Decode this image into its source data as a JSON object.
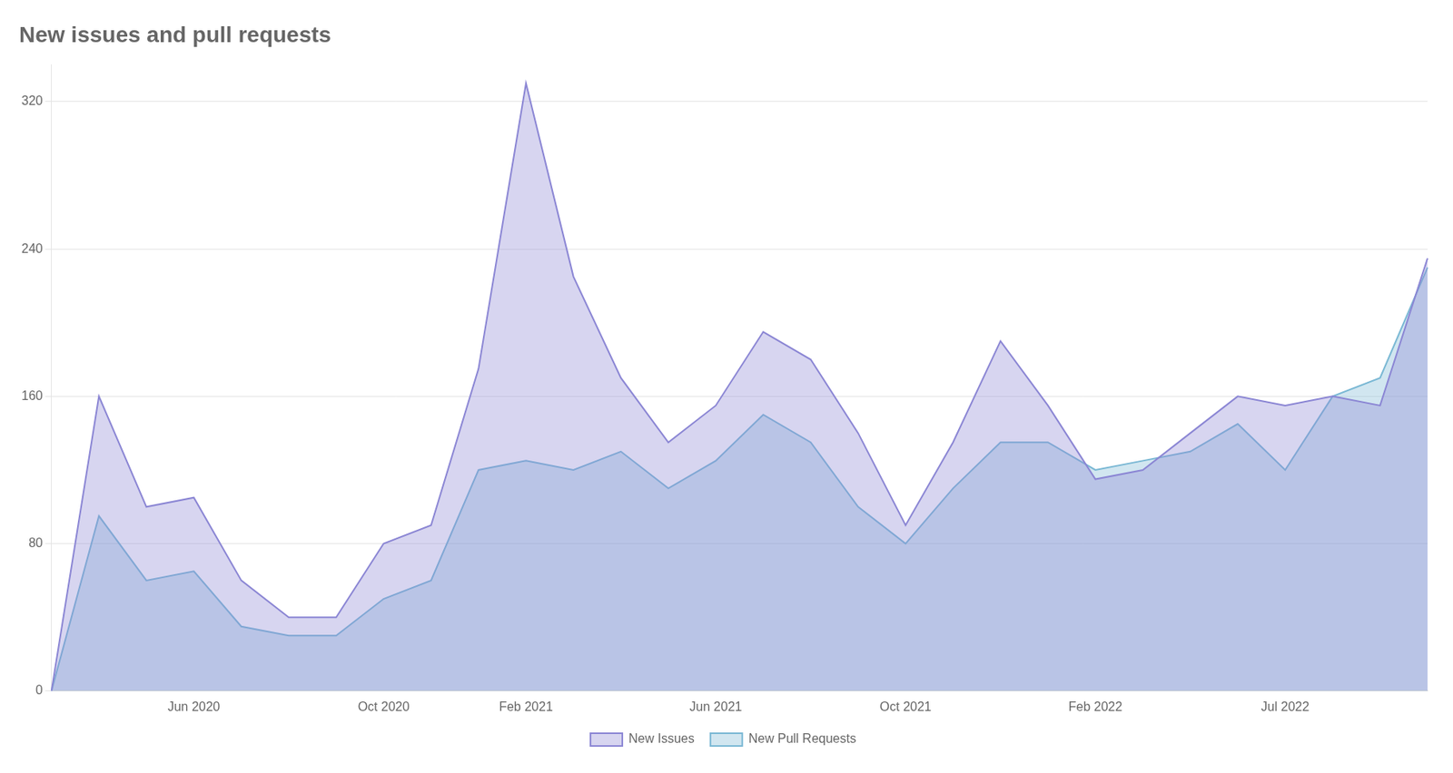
{
  "chart_data": {
    "type": "area",
    "title": "New issues and pull requests",
    "categories": [
      null,
      null,
      null,
      "Jun 2020",
      null,
      null,
      null,
      "Oct 2020",
      null,
      null,
      "Feb 2021",
      null,
      null,
      null,
      "Jun 2021",
      null,
      null,
      null,
      "Oct 2021",
      null,
      null,
      null,
      "Feb 2022",
      null,
      null,
      null,
      "Jul 2022",
      null,
      null,
      null
    ],
    "series": [
      {
        "name": "New Issues",
        "color": "#8b86d4",
        "values": [
          0,
          160,
          100,
          105,
          60,
          40,
          40,
          80,
          90,
          175,
          330,
          225,
          170,
          135,
          155,
          195,
          180,
          140,
          90,
          135,
          190,
          155,
          115,
          120,
          140,
          160,
          155,
          160,
          155,
          235
        ]
      },
      {
        "name": "New Pull Requests",
        "color": "#7ab8d4",
        "values": [
          0,
          95,
          60,
          65,
          35,
          30,
          30,
          50,
          60,
          120,
          125,
          120,
          130,
          110,
          125,
          150,
          135,
          100,
          80,
          110,
          135,
          135,
          120,
          125,
          130,
          145,
          120,
          160,
          170,
          230
        ]
      }
    ],
    "ylim": [
      0,
      340
    ],
    "yticks": [
      0,
      80,
      160,
      240,
      320
    ],
    "grid": "y",
    "legend": "bottom"
  }
}
